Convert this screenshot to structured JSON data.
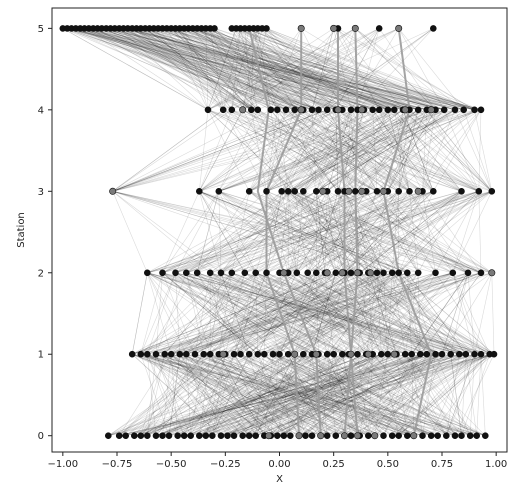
{
  "chart_data": {
    "type": "network",
    "title": "",
    "xlabel": "X",
    "ylabel": "Station",
    "xlim": [
      -1.05,
      1.05
    ],
    "ylim": [
      -0.2,
      5.25
    ],
    "grid": false,
    "x_ticks": [
      -1.0,
      -0.75,
      -0.5,
      -0.25,
      0.0,
      0.25,
      0.5,
      0.75,
      1.0
    ],
    "x_tick_labels": [
      "−1.00",
      "−0.75",
      "−0.50",
      "−0.25",
      "0.00",
      "0.25",
      "0.50",
      "0.75",
      "1.00"
    ],
    "y_ticks": [
      0,
      1,
      2,
      3,
      4,
      5
    ],
    "y_tick_labels": [
      "0",
      "1",
      "2",
      "3",
      "4",
      "5"
    ],
    "colors": {
      "node_dark": "#111111",
      "node_gray": "#7a7a7a",
      "edge": "#1a1a1a",
      "highlight": "#9a9a9a"
    },
    "stations": [
      {
        "y": 0,
        "x": [
          -0.79,
          -0.74,
          -0.71,
          -0.67,
          -0.64,
          -0.61,
          -0.57,
          -0.54,
          -0.51,
          -0.47,
          -0.44,
          -0.41,
          -0.37,
          -0.34,
          -0.31,
          -0.27,
          -0.24,
          -0.21,
          -0.17,
          -0.14,
          -0.11,
          -0.07,
          -0.04,
          -0.01,
          0.02,
          0.05,
          0.09,
          0.12,
          0.15,
          0.19,
          0.22,
          0.26,
          0.3,
          0.33,
          0.37,
          0.41,
          0.44,
          0.48,
          0.52,
          0.55,
          0.59,
          0.62,
          0.66,
          0.7,
          0.73,
          0.77,
          0.81,
          0.84,
          0.88,
          0.91,
          0.95
        ]
      },
      {
        "y": 1,
        "x": [
          -0.68,
          -0.64,
          -0.61,
          -0.57,
          -0.53,
          -0.5,
          -0.46,
          -0.43,
          -0.39,
          -0.35,
          -0.32,
          -0.28,
          -0.25,
          -0.21,
          -0.18,
          -0.14,
          -0.1,
          -0.07,
          -0.03,
          0.0,
          0.04,
          0.07,
          0.11,
          0.15,
          0.18,
          0.22,
          0.25,
          0.29,
          0.32,
          0.36,
          0.4,
          0.43,
          0.47,
          0.5,
          0.54,
          0.58,
          0.61,
          0.65,
          0.68,
          0.72,
          0.75,
          0.79,
          0.83,
          0.86,
          0.9,
          0.93,
          0.97,
          0.99
        ]
      },
      {
        "y": 2,
        "x": [
          -0.61,
          -0.54,
          -0.48,
          -0.43,
          -0.38,
          -0.32,
          -0.27,
          -0.22,
          -0.16,
          -0.11,
          -0.06,
          0.0,
          0.04,
          0.08,
          0.13,
          0.17,
          0.21,
          0.26,
          0.3,
          0.33,
          0.37,
          0.41,
          0.45,
          0.48,
          0.52,
          0.55,
          0.59,
          0.64,
          0.72,
          0.8,
          0.87,
          0.93,
          0.98
        ]
      },
      {
        "y": 3,
        "x": [
          -0.77,
          -0.37,
          -0.28,
          -0.14,
          -0.06,
          0.01,
          0.04,
          0.07,
          0.11,
          0.17,
          0.22,
          0.27,
          0.3,
          0.35,
          0.4,
          0.45,
          0.5,
          0.55,
          0.6,
          0.66,
          0.71,
          0.84,
          0.92,
          0.98
        ]
      },
      {
        "y": 4,
        "x": [
          -0.33,
          -0.26,
          -0.22,
          -0.17,
          -0.13,
          -0.1,
          -0.04,
          -0.01,
          0.03,
          0.07,
          0.11,
          0.15,
          0.18,
          0.22,
          0.26,
          0.29,
          0.33,
          0.36,
          0.39,
          0.43,
          0.46,
          0.5,
          0.53,
          0.57,
          0.6,
          0.64,
          0.68,
          0.72,
          0.76,
          0.81,
          0.85,
          0.9,
          0.93
        ]
      },
      {
        "y": 5,
        "x": [
          -1.0,
          -0.98,
          -0.96,
          -0.94,
          -0.92,
          -0.9,
          -0.88,
          -0.86,
          -0.84,
          -0.82,
          -0.8,
          -0.78,
          -0.76,
          -0.74,
          -0.72,
          -0.7,
          -0.68,
          -0.66,
          -0.64,
          -0.62,
          -0.6,
          -0.58,
          -0.56,
          -0.54,
          -0.52,
          -0.5,
          -0.48,
          -0.46,
          -0.44,
          -0.42,
          -0.4,
          -0.38,
          -0.36,
          -0.34,
          -0.32,
          -0.3,
          -0.22,
          -0.2,
          -0.18,
          -0.16,
          -0.14,
          -0.12,
          -0.1,
          -0.08,
          -0.06,
          0.1,
          0.25,
          0.27,
          0.35,
          0.46,
          0.55,
          0.71
        ]
      }
    ],
    "gray_nodes": [
      [
        0,
        -0.05
      ],
      [
        0,
        0.09
      ],
      [
        0,
        0.19
      ],
      [
        0,
        0.3
      ],
      [
        0,
        0.36
      ],
      [
        0,
        0.44
      ],
      [
        0,
        0.62
      ],
      [
        1,
        -0.26
      ],
      [
        1,
        0.07
      ],
      [
        1,
        0.17
      ],
      [
        1,
        0.33
      ],
      [
        1,
        0.41
      ],
      [
        1,
        0.53
      ],
      [
        2,
        0.02
      ],
      [
        2,
        0.22
      ],
      [
        2,
        0.29
      ],
      [
        2,
        0.36
      ],
      [
        2,
        0.42
      ],
      [
        2,
        0.98
      ],
      [
        3,
        -0.77
      ],
      [
        3,
        0.2
      ],
      [
        3,
        0.32
      ],
      [
        3,
        0.38
      ],
      [
        3,
        0.48
      ],
      [
        3,
        0.64
      ],
      [
        4,
        -0.17
      ],
      [
        4,
        0.1
      ],
      [
        4,
        0.27
      ],
      [
        4,
        0.38
      ],
      [
        4,
        0.58
      ],
      [
        4,
        0.7
      ],
      [
        5,
        0.1
      ],
      [
        5,
        0.25
      ],
      [
        5,
        0.35
      ],
      [
        5,
        0.55
      ]
    ],
    "highlight_paths": [
      [
        [
          0,
          0.19
        ],
        [
          1,
          0.17
        ],
        [
          2,
          0.02
        ],
        [
          3,
          -0.1
        ],
        [
          4,
          -0.05
        ],
        [
          5,
          -0.14
        ]
      ],
      [
        [
          0,
          0.3
        ],
        [
          1,
          0.33
        ],
        [
          2,
          0.3
        ],
        [
          3,
          0.3
        ],
        [
          4,
          0.27
        ],
        [
          5,
          0.27
        ]
      ],
      [
        [
          0,
          0.36
        ],
        [
          1,
          0.33
        ],
        [
          2,
          0.36
        ],
        [
          3,
          0.35
        ],
        [
          4,
          0.36
        ],
        [
          5,
          0.35
        ]
      ],
      [
        [
          0,
          0.62
        ],
        [
          1,
          0.7
        ],
        [
          2,
          0.55
        ],
        [
          3,
          0.48
        ],
        [
          4,
          0.6
        ],
        [
          5,
          0.55
        ]
      ],
      [
        [
          0,
          0.09
        ],
        [
          1,
          0.07
        ],
        [
          2,
          -0.06
        ],
        [
          3,
          -0.06
        ],
        [
          4,
          0.1
        ],
        [
          5,
          0.1
        ]
      ]
    ]
  }
}
